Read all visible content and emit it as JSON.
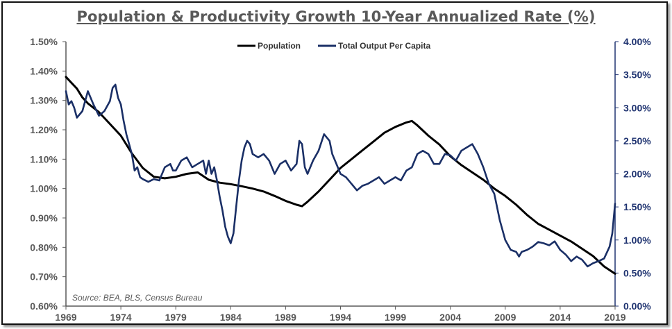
{
  "chart_data": {
    "type": "line",
    "title": "Population & Productivity Growth 10-Year Annualized Rate (%)",
    "source": "Source: BEA, BLS, Census Bureau",
    "x_ticks": [
      "1969",
      "1974",
      "1979",
      "1984",
      "1989",
      "1994",
      "1999",
      "2004",
      "2009",
      "2014",
      "2019"
    ],
    "x_range": [
      1969,
      2019
    ],
    "left_axis": {
      "ticks": [
        "0.60%",
        "0.70%",
        "0.80%",
        "0.90%",
        "1.00%",
        "1.10%",
        "1.20%",
        "1.30%",
        "1.40%",
        "1.50%"
      ],
      "range": [
        0.6,
        1.5
      ]
    },
    "right_axis": {
      "ticks": [
        "0.00%",
        "0.50%",
        "1.00%",
        "1.50%",
        "2.00%",
        "2.50%",
        "3.00%",
        "3.50%",
        "4.00%"
      ],
      "range": [
        0.0,
        4.0
      ]
    },
    "series": [
      {
        "name": "Population",
        "axis": "left",
        "color": "#000000",
        "points": [
          [
            1969.0,
            1.38
          ],
          [
            1969.5,
            1.36
          ],
          [
            1970.0,
            1.34
          ],
          [
            1970.5,
            1.31
          ],
          [
            1971.0,
            1.29
          ],
          [
            1972.0,
            1.26
          ],
          [
            1973.0,
            1.22
          ],
          [
            1974.0,
            1.18
          ],
          [
            1975.0,
            1.12
          ],
          [
            1976.0,
            1.07
          ],
          [
            1977.0,
            1.04
          ],
          [
            1978.0,
            1.035
          ],
          [
            1979.0,
            1.04
          ],
          [
            1980.0,
            1.05
          ],
          [
            1981.0,
            1.055
          ],
          [
            1982.0,
            1.03
          ],
          [
            1983.0,
            1.02
          ],
          [
            1984.0,
            1.015
          ],
          [
            1985.0,
            1.008
          ],
          [
            1986.0,
            1.0
          ],
          [
            1987.0,
            0.99
          ],
          [
            1988.0,
            0.975
          ],
          [
            1989.0,
            0.958
          ],
          [
            1990.0,
            0.945
          ],
          [
            1990.5,
            0.94
          ],
          [
            1991.0,
            0.955
          ],
          [
            1992.0,
            0.99
          ],
          [
            1993.0,
            1.03
          ],
          [
            1994.0,
            1.07
          ],
          [
            1995.0,
            1.1
          ],
          [
            1996.0,
            1.13
          ],
          [
            1997.0,
            1.16
          ],
          [
            1998.0,
            1.19
          ],
          [
            1999.0,
            1.21
          ],
          [
            2000.0,
            1.225
          ],
          [
            2000.5,
            1.23
          ],
          [
            2001.0,
            1.215
          ],
          [
            2002.0,
            1.18
          ],
          [
            2003.0,
            1.15
          ],
          [
            2004.0,
            1.11
          ],
          [
            2005.0,
            1.08
          ],
          [
            2006.0,
            1.055
          ],
          [
            2007.0,
            1.03
          ],
          [
            2008.0,
            1.0
          ],
          [
            2009.0,
            0.975
          ],
          [
            2010.0,
            0.945
          ],
          [
            2011.0,
            0.91
          ],
          [
            2012.0,
            0.88
          ],
          [
            2013.0,
            0.86
          ],
          [
            2014.0,
            0.84
          ],
          [
            2015.0,
            0.82
          ],
          [
            2016.0,
            0.795
          ],
          [
            2017.0,
            0.77
          ],
          [
            2018.0,
            0.735
          ],
          [
            2019.0,
            0.71
          ]
        ]
      },
      {
        "name": "Total Output Per Capita",
        "axis": "right",
        "color": "#1a2f66",
        "points": [
          [
            1969.0,
            3.25
          ],
          [
            1969.25,
            3.05
          ],
          [
            1969.5,
            3.1
          ],
          [
            1969.75,
            3.0
          ],
          [
            1970.0,
            2.85
          ],
          [
            1970.5,
            2.95
          ],
          [
            1971.0,
            3.25
          ],
          [
            1971.5,
            3.05
          ],
          [
            1972.0,
            2.88
          ],
          [
            1972.5,
            2.95
          ],
          [
            1973.0,
            3.1
          ],
          [
            1973.25,
            3.3
          ],
          [
            1973.5,
            3.35
          ],
          [
            1973.75,
            3.15
          ],
          [
            1974.0,
            3.05
          ],
          [
            1974.25,
            2.8
          ],
          [
            1974.5,
            2.6
          ],
          [
            1974.75,
            2.45
          ],
          [
            1975.0,
            2.3
          ],
          [
            1975.25,
            2.05
          ],
          [
            1975.5,
            2.1
          ],
          [
            1975.75,
            1.95
          ],
          [
            1976.0,
            1.92
          ],
          [
            1976.5,
            1.88
          ],
          [
            1977.0,
            1.92
          ],
          [
            1977.5,
            1.9
          ],
          [
            1978.0,
            2.1
          ],
          [
            1978.5,
            2.15
          ],
          [
            1978.75,
            2.05
          ],
          [
            1979.0,
            2.05
          ],
          [
            1979.5,
            2.2
          ],
          [
            1980.0,
            2.25
          ],
          [
            1980.5,
            2.1
          ],
          [
            1981.0,
            2.15
          ],
          [
            1981.5,
            2.2
          ],
          [
            1981.75,
            2.0
          ],
          [
            1982.0,
            2.2
          ],
          [
            1982.25,
            2.0
          ],
          [
            1982.5,
            2.1
          ],
          [
            1982.75,
            1.9
          ],
          [
            1983.0,
            1.65
          ],
          [
            1983.25,
            1.45
          ],
          [
            1983.5,
            1.2
          ],
          [
            1983.75,
            1.05
          ],
          [
            1984.0,
            0.95
          ],
          [
            1984.25,
            1.1
          ],
          [
            1984.5,
            1.5
          ],
          [
            1984.75,
            1.9
          ],
          [
            1985.0,
            2.2
          ],
          [
            1985.25,
            2.4
          ],
          [
            1985.5,
            2.5
          ],
          [
            1985.75,
            2.45
          ],
          [
            1986.0,
            2.3
          ],
          [
            1986.5,
            2.25
          ],
          [
            1987.0,
            2.3
          ],
          [
            1987.5,
            2.2
          ],
          [
            1988.0,
            2.0
          ],
          [
            1988.5,
            2.15
          ],
          [
            1989.0,
            2.2
          ],
          [
            1989.5,
            2.05
          ],
          [
            1990.0,
            2.15
          ],
          [
            1990.25,
            2.5
          ],
          [
            1990.5,
            2.45
          ],
          [
            1990.75,
            2.1
          ],
          [
            1991.0,
            2.0
          ],
          [
            1991.5,
            2.2
          ],
          [
            1992.0,
            2.35
          ],
          [
            1992.5,
            2.6
          ],
          [
            1993.0,
            2.5
          ],
          [
            1993.25,
            2.3
          ],
          [
            1993.5,
            2.2
          ],
          [
            1994.0,
            2.0
          ],
          [
            1994.5,
            1.95
          ],
          [
            1995.0,
            1.85
          ],
          [
            1995.5,
            1.75
          ],
          [
            1996.0,
            1.82
          ],
          [
            1996.5,
            1.85
          ],
          [
            1997.0,
            1.9
          ],
          [
            1997.5,
            1.95
          ],
          [
            1998.0,
            1.85
          ],
          [
            1998.5,
            1.9
          ],
          [
            1999.0,
            1.95
          ],
          [
            1999.5,
            1.9
          ],
          [
            2000.0,
            2.05
          ],
          [
            2000.5,
            2.1
          ],
          [
            2001.0,
            2.3
          ],
          [
            2001.5,
            2.35
          ],
          [
            2002.0,
            2.3
          ],
          [
            2002.5,
            2.15
          ],
          [
            2003.0,
            2.15
          ],
          [
            2003.5,
            2.3
          ],
          [
            2004.0,
            2.28
          ],
          [
            2004.5,
            2.2
          ],
          [
            2005.0,
            2.35
          ],
          [
            2005.5,
            2.4
          ],
          [
            2006.0,
            2.45
          ],
          [
            2006.5,
            2.3
          ],
          [
            2007.0,
            2.1
          ],
          [
            2007.5,
            1.85
          ],
          [
            2008.0,
            1.7
          ],
          [
            2008.5,
            1.3
          ],
          [
            2009.0,
            1.0
          ],
          [
            2009.5,
            0.85
          ],
          [
            2010.0,
            0.82
          ],
          [
            2010.25,
            0.75
          ],
          [
            2010.5,
            0.82
          ],
          [
            2011.0,
            0.85
          ],
          [
            2011.5,
            0.9
          ],
          [
            2012.0,
            0.97
          ],
          [
            2012.5,
            0.95
          ],
          [
            2013.0,
            0.92
          ],
          [
            2013.5,
            0.98
          ],
          [
            2014.0,
            0.85
          ],
          [
            2014.5,
            0.78
          ],
          [
            2015.0,
            0.68
          ],
          [
            2015.5,
            0.75
          ],
          [
            2016.0,
            0.7
          ],
          [
            2016.5,
            0.6
          ],
          [
            2017.0,
            0.65
          ],
          [
            2017.5,
            0.68
          ],
          [
            2018.0,
            0.72
          ],
          [
            2018.5,
            0.9
          ],
          [
            2018.75,
            1.1
          ],
          [
            2019.0,
            1.55
          ]
        ]
      }
    ]
  }
}
